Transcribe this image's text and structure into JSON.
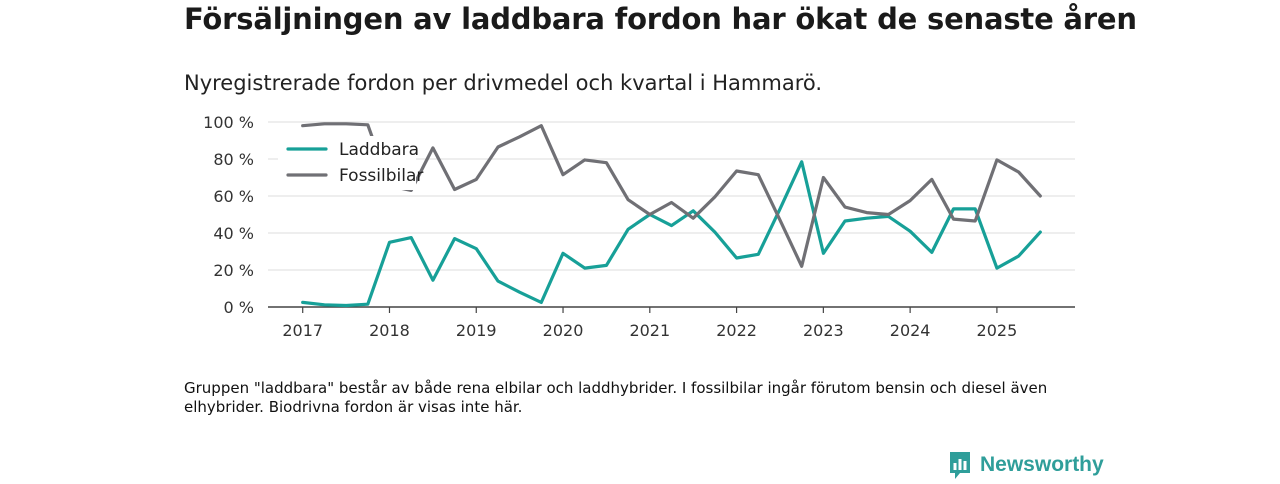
{
  "title": "Försäljningen av laddbara fordon har ökat de senaste åren",
  "subtitle": "Nyregistrerade fordon per drivmedel och kvartal i Hammarö.",
  "footnote": "Gruppen \"laddbara\" består av både rena elbilar och laddhybrider. I fossilbilar ingår förutom bensin och diesel även elhybrider. Biodrivna fordon är visas inte här.",
  "brand": {
    "name": "Newsworthy"
  },
  "chart_data": {
    "type": "line",
    "title": "Försäljningen av laddbara fordon har ökat de senaste åren",
    "subtitle": "Nyregistrerade fordon per drivmedel och kvartal i Hammarö.",
    "xlabel": "",
    "ylabel": "",
    "x": [
      2017.0,
      2017.25,
      2017.5,
      2017.75,
      2018.0,
      2018.25,
      2018.5,
      2018.75,
      2019.0,
      2019.25,
      2019.5,
      2019.75,
      2020.0,
      2020.25,
      2020.5,
      2020.75,
      2021.0,
      2021.25,
      2021.5,
      2021.75,
      2022.0,
      2022.25,
      2022.5,
      2022.75,
      2023.0,
      2023.25,
      2023.5,
      2023.75,
      2024.0,
      2024.25,
      2024.5,
      2024.75,
      2025.0,
      2025.25,
      2025.5
    ],
    "xticks": [
      2017,
      2018,
      2019,
      2020,
      2021,
      2022,
      2023,
      2024,
      2025
    ],
    "xlim": [
      2016.6,
      2025.9
    ],
    "yticks": [
      0,
      20,
      40,
      60,
      80,
      100
    ],
    "ytick_labels": [
      "0 %",
      "20 %",
      "40 %",
      "60 %",
      "80 %",
      "100 %"
    ],
    "ylim": [
      0,
      100
    ],
    "grid": true,
    "legend_position": "top-left",
    "series": [
      {
        "name": "Laddbara",
        "color": "#17a098",
        "values": [
          2.5,
          1.2,
          0.8,
          1.5,
          35,
          37.5,
          14.5,
          37,
          31.5,
          14,
          8,
          2.5,
          29,
          21,
          22.5,
          42,
          50,
          44,
          52,
          40.5,
          26.5,
          28.5,
          53,
          78.5,
          29,
          46.5,
          48,
          49,
          41,
          29.5,
          53,
          53,
          21,
          27.5,
          40.5
        ]
      },
      {
        "name": "Fossilbilar",
        "color": "#707075",
        "values": [
          98,
          99,
          99,
          98.5,
          65.5,
          63,
          86,
          63.5,
          69,
          86.5,
          92,
          98,
          71.5,
          79.5,
          78,
          58,
          50,
          56.5,
          48,
          59.5,
          73.5,
          71.5,
          47,
          22,
          70,
          54,
          51,
          50,
          57.5,
          69,
          47.5,
          46.5,
          79.5,
          73,
          60
        ]
      }
    ]
  }
}
